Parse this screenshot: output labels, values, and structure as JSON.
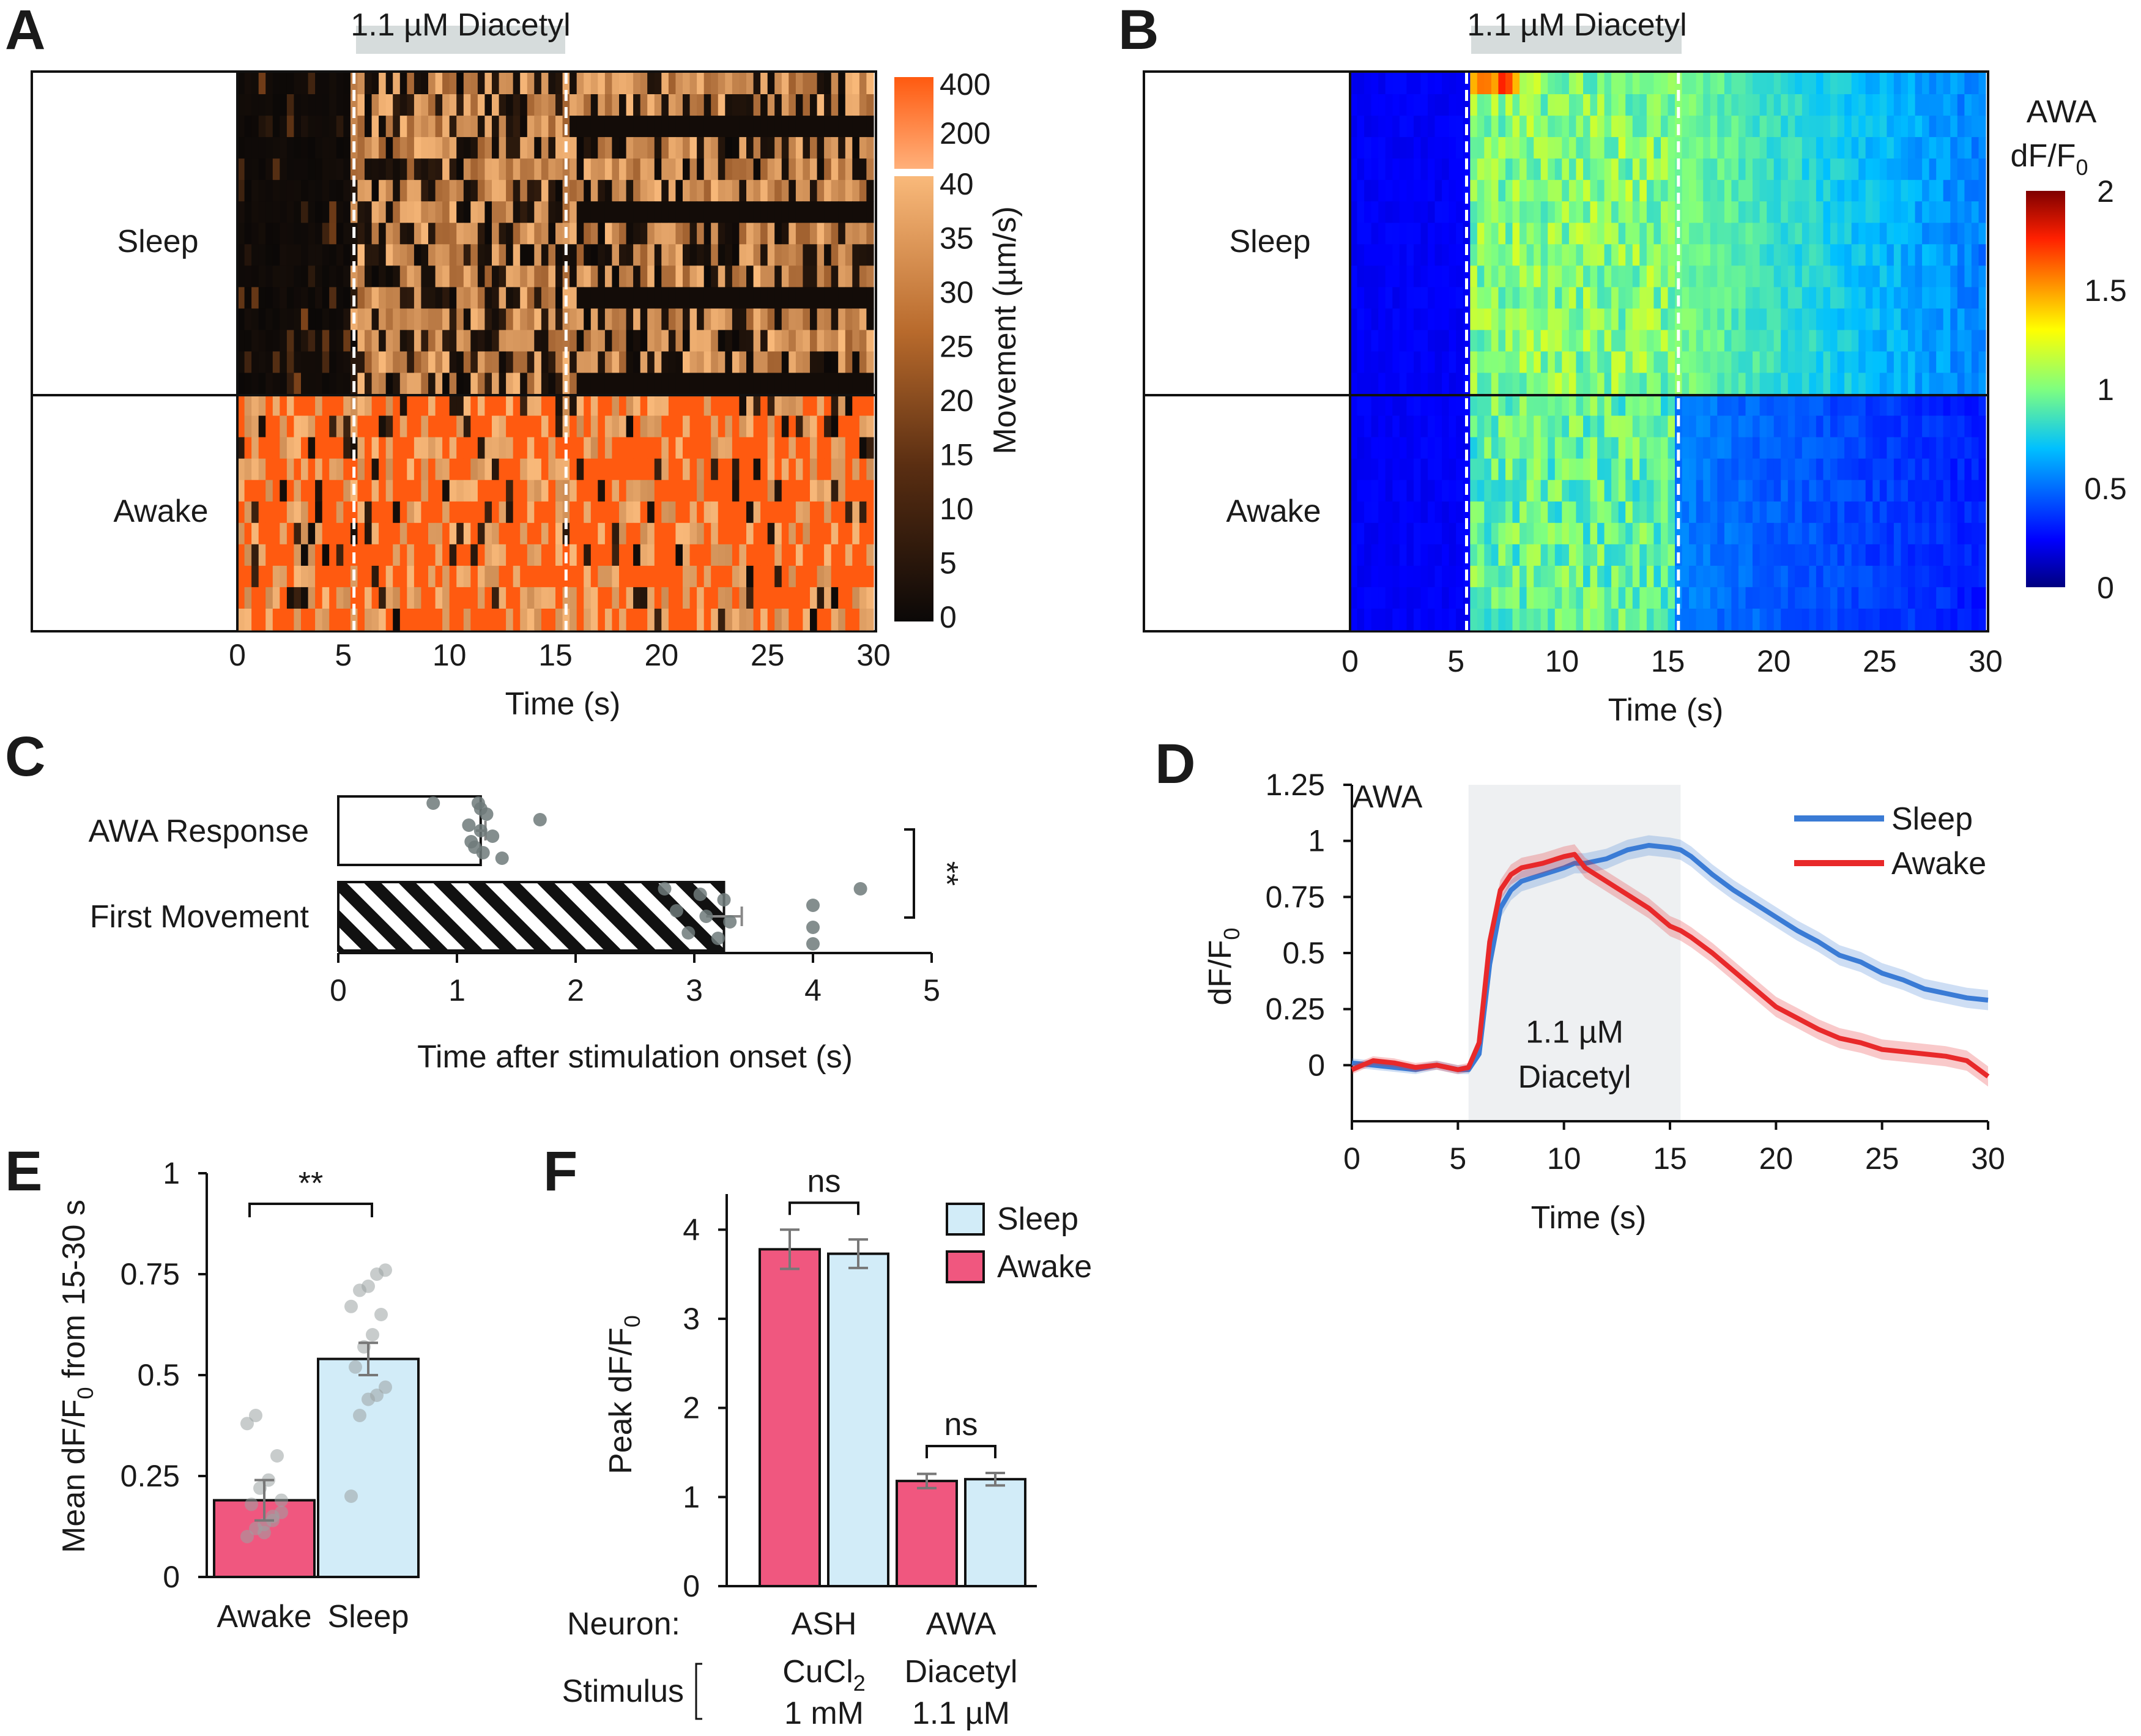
{
  "panels": {
    "A": "A",
    "B": "B",
    "C": "C",
    "D": "D",
    "E": "E",
    "F": "F"
  },
  "chart_data": [
    {
      "id": "A",
      "type": "heatmap",
      "stimulus_label": "1.1 µM Diacetyl",
      "stimulus_window_s": [
        5.5,
        15.5
      ],
      "xlabel": "Time (s)",
      "xlim": [
        0,
        30
      ],
      "xticks": [
        "0",
        "5",
        "10",
        "15",
        "20",
        "25",
        "30"
      ],
      "groups": [
        {
          "label": "Sleep",
          "rows": 15
        },
        {
          "label": "Awake",
          "rows": 11
        }
      ],
      "colorbar": {
        "label": "Movement (µm/s)",
        "upper_ticks": [
          "400",
          "200"
        ],
        "lower_ticks": [
          "40",
          "35",
          "30",
          "25",
          "20",
          "15",
          "10",
          "5",
          "0"
        ],
        "colors": {
          "low": "#0b0807",
          "mid": "#8a4a1c",
          "high": "#f9b97a",
          "saturated": "#ff5a10"
        }
      }
    },
    {
      "id": "B",
      "type": "heatmap",
      "stimulus_label": "1.1 µM Diacetyl",
      "stimulus_window_s": [
        5.5,
        15.5
      ],
      "xlabel": "Time (s)",
      "xlim": [
        0,
        30
      ],
      "xticks": [
        "0",
        "5",
        "10",
        "15",
        "20",
        "25",
        "30"
      ],
      "groups": [
        {
          "label": "Sleep",
          "rows": 15
        },
        {
          "label": "Awake",
          "rows": 11
        }
      ],
      "colorbar": {
        "label_line1": "AWA",
        "label_line2": "dF/F",
        "label_sub": "0",
        "ticks": [
          "2",
          "1.5",
          "1",
          "0.5",
          "0"
        ],
        "range": [
          0,
          2
        ],
        "colormap": "jet"
      }
    },
    {
      "id": "C",
      "type": "bar",
      "orientation": "horizontal",
      "categories": [
        "AWA Response",
        "First Movement"
      ],
      "values": [
        1.2,
        3.25
      ],
      "errors": [
        0.04,
        0.15
      ],
      "points": [
        [
          0.8,
          1.1,
          1.15,
          1.2,
          1.2,
          1.22,
          1.25,
          1.3,
          1.38,
          1.7,
          1.12,
          1.18
        ],
        [
          2.75,
          2.85,
          2.95,
          3.05,
          3.1,
          3.2,
          3.25,
          3.3,
          4.0,
          4.0,
          4.0,
          4.4
        ]
      ],
      "patterns": [
        "open",
        "hatched"
      ],
      "xlabel": "Time after stimulation onset (s)",
      "xlim": [
        0,
        5
      ],
      "xticks": [
        "0",
        "1",
        "2",
        "3",
        "4",
        "5"
      ],
      "significance": "**"
    },
    {
      "id": "D",
      "type": "line",
      "title": "AWA",
      "xlabel": "Time (s)",
      "ylabel": "dF/F",
      "ylabel_sub": "0",
      "xlim": [
        0,
        30
      ],
      "ylim": [
        -0.25,
        1.25
      ],
      "xticks": [
        "0",
        "5",
        "10",
        "15",
        "20",
        "25",
        "30"
      ],
      "yticks": [
        "0",
        "0.25",
        "0.5",
        "0.75",
        "1",
        "1.25"
      ],
      "stimulus_window_s": [
        5.5,
        15.5
      ],
      "stimulus_label_line1": "1.1 µM",
      "stimulus_label_line2": "Diacetyl",
      "x": [
        0,
        1,
        2,
        3,
        4,
        5,
        5.5,
        6,
        6.5,
        7,
        7.5,
        8,
        9,
        10,
        10.5,
        11,
        12,
        13,
        14,
        15,
        15.5,
        16,
        17,
        18,
        19,
        20,
        21,
        22,
        23,
        24,
        25,
        26,
        27,
        28,
        29,
        30
      ],
      "series": [
        {
          "name": "Sleep",
          "color": "#3a7bd5",
          "values": [
            0.01,
            0.0,
            -0.01,
            -0.02,
            0.0,
            -0.02,
            -0.02,
            0.05,
            0.45,
            0.7,
            0.78,
            0.82,
            0.85,
            0.88,
            0.9,
            0.9,
            0.92,
            0.96,
            0.98,
            0.97,
            0.96,
            0.93,
            0.85,
            0.78,
            0.72,
            0.66,
            0.6,
            0.55,
            0.49,
            0.46,
            0.41,
            0.38,
            0.34,
            0.32,
            0.3,
            0.29
          ]
        },
        {
          "name": "Awake",
          "color": "#e8292a",
          "values": [
            -0.02,
            0.02,
            0.01,
            -0.01,
            0.0,
            -0.02,
            -0.01,
            0.1,
            0.55,
            0.78,
            0.85,
            0.88,
            0.9,
            0.93,
            0.94,
            0.88,
            0.82,
            0.76,
            0.7,
            0.62,
            0.6,
            0.57,
            0.5,
            0.42,
            0.34,
            0.26,
            0.21,
            0.16,
            0.12,
            0.1,
            0.07,
            0.06,
            0.05,
            0.04,
            0.02,
            -0.05
          ]
        }
      ]
    },
    {
      "id": "E",
      "type": "bar",
      "categories": [
        "Awake",
        "Sleep"
      ],
      "values": [
        0.19,
        0.54
      ],
      "errors": [
        0.05,
        0.04
      ],
      "colors": [
        "#f0577f",
        "#d2ecf8"
      ],
      "points": [
        [
          0.1,
          0.12,
          0.13,
          0.15,
          0.16,
          0.18,
          0.22,
          0.24,
          0.3,
          0.38,
          0.4,
          0.11,
          0.14,
          0.19
        ],
        [
          0.2,
          0.4,
          0.44,
          0.45,
          0.47,
          0.52,
          0.57,
          0.6,
          0.65,
          0.67,
          0.71,
          0.72,
          0.75,
          0.76
        ]
      ],
      "ylabel": "Mean dF/F",
      "ylabel_sub": "0",
      "ylabel_tail": " from 15-30 s",
      "ylim": [
        0,
        1
      ],
      "yticks": [
        "0",
        "0.25",
        "0.5",
        "0.75",
        "1"
      ],
      "significance": "**"
    },
    {
      "id": "F",
      "type": "bar",
      "groups": [
        {
          "neuron": "ASH",
          "stimulus_name": "CuCl",
          "stimulus_sub": "2",
          "stimulus_conc": "1 mM",
          "awake": 3.78,
          "awake_err": 0.22,
          "sleep": 3.73,
          "sleep_err": 0.16,
          "significance": "ns"
        },
        {
          "neuron": "AWA",
          "stimulus_name": "Diacetyl",
          "stimulus_sub": "",
          "stimulus_conc": "1.1 µM",
          "awake": 1.18,
          "awake_err": 0.08,
          "sleep": 1.2,
          "sleep_err": 0.07,
          "significance": "ns"
        }
      ],
      "ylabel": "Peak dF/F",
      "ylabel_sub": "0",
      "ylim": [
        0,
        4.4
      ],
      "yticks": [
        "0",
        "1",
        "2",
        "3",
        "4"
      ],
      "row_labels": {
        "neuron": "Neuron:",
        "stimulus": "Stimulus"
      },
      "legend": [
        {
          "name": "Sleep",
          "color": "#d2ecf8"
        },
        {
          "name": "Awake",
          "color": "#f0577f"
        }
      ]
    }
  ]
}
